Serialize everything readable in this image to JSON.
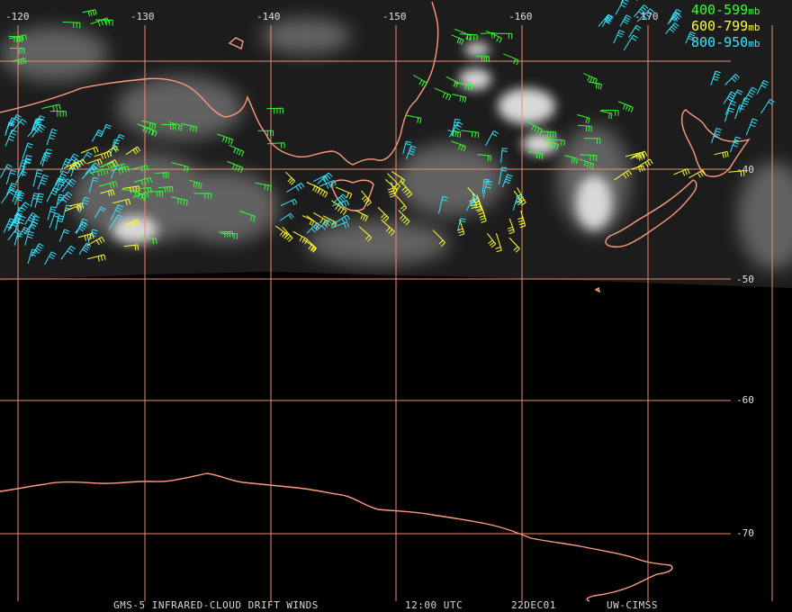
{
  "map": {
    "longitude_labels": [
      "-120",
      "-130",
      "-140",
      "-150",
      "-160",
      "-170"
    ],
    "latitude_labels": [
      "-40",
      "-50",
      "-60",
      "-70"
    ]
  },
  "legend": {
    "items": [
      {
        "text": "400-599",
        "unit": "mb",
        "color": "#33ff33"
      },
      {
        "text": "600-799",
        "unit": "mb",
        "color": "#ffff33"
      },
      {
        "text": "800-950",
        "unit": "mb",
        "color": "#33e6ff"
      }
    ]
  },
  "caption": {
    "product": "GMS-5 INFRARED-CLOUD DRIFT WINDS",
    "time": "12:00 UTC",
    "date": "22DEC01",
    "source": "UW-CIMSS"
  },
  "colors": {
    "grid": "#f08c70",
    "coast": "#ff9a80",
    "background": "#000000"
  }
}
